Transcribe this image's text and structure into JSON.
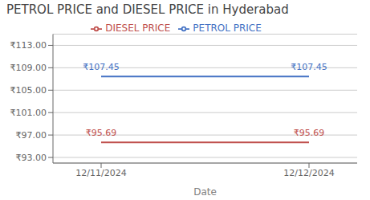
{
  "chart_data": {
    "type": "line",
    "title": "PETROL PRICE and DIESEL PRICE in Hyderabad",
    "xlabel": "Date",
    "categories": [
      "12/11/2024",
      "12/12/2024"
    ],
    "series": [
      {
        "name": "PETROL PRICE",
        "color": "#4472C4",
        "values": [
          107.45,
          107.45
        ],
        "value_labels": [
          "₹107.45",
          "₹107.45"
        ]
      },
      {
        "name": "DIESEL PRICE",
        "color": "#C0504D",
        "values": [
          95.69,
          95.69
        ],
        "value_labels": [
          "₹95.69",
          "₹95.69"
        ]
      }
    ],
    "ylim": [
      92.0,
      115.0
    ],
    "yticks": [
      {
        "value": 93.0,
        "label": "₹93.00"
      },
      {
        "value": 97.0,
        "label": "₹97.00"
      },
      {
        "value": 101.0,
        "label": "₹101.00"
      },
      {
        "value": 105.0,
        "label": "₹105.00"
      },
      {
        "value": 109.0,
        "label": "₹109.00"
      },
      {
        "value": 113.0,
        "label": "₹113.00"
      }
    ],
    "grid": true,
    "legend": "top",
    "data_labels": true
  }
}
